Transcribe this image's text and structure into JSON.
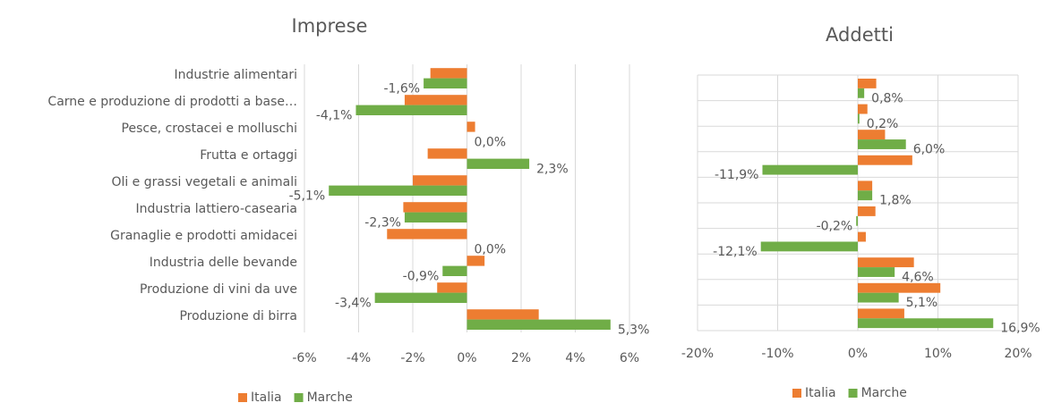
{
  "chart_data": [
    {
      "type": "hbar",
      "title": "Imprese",
      "categories": [
        "Industrie alimentari",
        "Carne e produzione di prodotti a base…",
        "Pesce, crostacei e molluschi",
        "Frutta e ortaggi",
        "Oli e grassi vegetali e animali",
        "Industria lattiero-casearia",
        "Granaglie e prodotti amidacei",
        "Industria delle bevande",
        "Produzione di vini da uve",
        "Produzione di birra"
      ],
      "series": [
        {
          "name": "Italia",
          "color": "#ED7D31",
          "values": [
            -1.35,
            -2.3,
            0.3,
            -1.45,
            -2.0,
            -2.35,
            -2.95,
            0.65,
            -1.1,
            2.65
          ]
        },
        {
          "name": "Marche",
          "color": "#70AD47",
          "values": [
            -1.6,
            -4.1,
            0.0,
            2.3,
            -5.1,
            -2.3,
            0.0,
            -0.9,
            -3.4,
            5.3
          ],
          "value_labels": [
            "-1,6%",
            "-4,1%",
            "0,0%",
            "2,3%",
            "-5,1%",
            "-2,3%",
            "0,0%",
            "-0,9%",
            "-3,4%",
            "5,3%"
          ]
        }
      ],
      "xlim": [
        -6,
        6
      ],
      "xticks": [
        {
          "value": -6,
          "label": "-6%"
        },
        {
          "value": -4,
          "label": "-4%"
        },
        {
          "value": -2,
          "label": "-2%"
        },
        {
          "value": 0,
          "label": "0%"
        },
        {
          "value": 2,
          "label": "2%"
        },
        {
          "value": 4,
          "label": "4%"
        },
        {
          "value": 6,
          "label": "6%"
        }
      ],
      "grid": true,
      "legend": "bottom"
    },
    {
      "type": "hbar",
      "title": "Addetti",
      "categories": [
        null,
        null,
        null,
        null,
        null,
        null,
        null,
        null,
        null,
        null
      ],
      "series": [
        {
          "name": "Italia",
          "color": "#ED7D31",
          "values": [
            2.3,
            1.2,
            3.4,
            6.8,
            1.8,
            2.2,
            1.0,
            7.0,
            10.3,
            5.8
          ]
        },
        {
          "name": "Marche",
          "color": "#70AD47",
          "values": [
            0.8,
            0.2,
            6.0,
            -11.9,
            1.8,
            -0.2,
            -12.1,
            4.6,
            5.1,
            16.9
          ],
          "value_labels": [
            "0,8%",
            "0,2%",
            "6,0%",
            "-11,9%",
            "1,8%",
            "-0,2%",
            "-12,1%",
            "4,6%",
            "5,1%",
            "16,9%"
          ]
        }
      ],
      "xlim": [
        -20,
        20
      ],
      "xticks": [
        {
          "value": -20,
          "label": "-20%"
        },
        {
          "value": -10,
          "label": "-10%"
        },
        {
          "value": 0,
          "label": "0%"
        },
        {
          "value": 10,
          "label": "10%"
        },
        {
          "value": 20,
          "label": "20%"
        }
      ],
      "grid": true,
      "category_grid": true,
      "legend": "bottom"
    }
  ]
}
